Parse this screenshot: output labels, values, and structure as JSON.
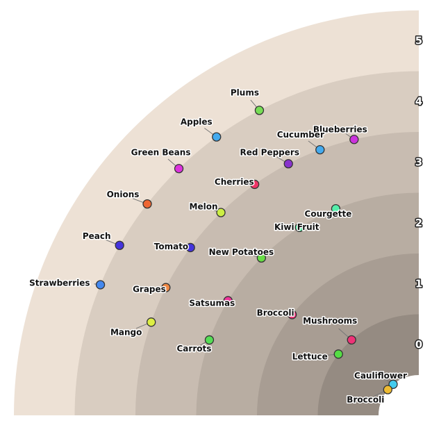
{
  "chart_data": {
    "type": "radial-scatter",
    "xlim": [
      0,
      90
    ],
    "ylim": [
      -0.5,
      5.5
    ],
    "yticks": [
      0,
      1,
      2,
      3,
      4,
      5
    ],
    "band_colors": [
      "#958b82",
      "#a89d93",
      "#b8ada2",
      "#c8bcb1",
      "#d9cdc1",
      "#ede1d5"
    ],
    "points": [
      {
        "name": "Plums",
        "x": 62.4,
        "y": 4.5,
        "color": "#77dd55"
      },
      {
        "name": "Apples",
        "x": 54.0,
        "y": 4.5,
        "color": "#44aaee"
      },
      {
        "name": "Green Beans",
        "x": 45.8,
        "y": 4.5,
        "color": "#dd33dd"
      },
      {
        "name": "Onions",
        "x": 37.9,
        "y": 4.5,
        "color": "#ee6633"
      },
      {
        "name": "Peach",
        "x": 29.6,
        "y": 4.5,
        "color": "#4433dd"
      },
      {
        "name": "Strawberries",
        "x": 22.3,
        "y": 4.5,
        "color": "#4488ee"
      },
      {
        "name": "Blueberries",
        "x": 76.8,
        "y": 3.5,
        "color": "#cc33dd"
      },
      {
        "name": "Cucumber",
        "x": 69.6,
        "y": 3.5,
        "color": "#44aaee"
      },
      {
        "name": "Red Peppers",
        "x": 62.6,
        "y": 3.5,
        "color": "#8833cc"
      },
      {
        "name": "Cherries",
        "x": 54.6,
        "y": 3.5,
        "color": "#ee3366"
      },
      {
        "name": "Melon",
        "x": 45.7,
        "y": 3.5,
        "color": "#ccee44"
      },
      {
        "name": "Tomato",
        "x": 36.3,
        "y": 3.5,
        "color": "#4433dd"
      },
      {
        "name": "Grapes",
        "x": 26.8,
        "y": 3.5,
        "color": "#ee8844"
      },
      {
        "name": "Mango",
        "x": 19.2,
        "y": 3.5,
        "color": "#ddee44"
      },
      {
        "name": "Courgette",
        "x": 68.1,
        "y": 2.5,
        "color": "#55eeaa"
      },
      {
        "name": "Kiwi Fruit",
        "x": 57.6,
        "y": 2.5,
        "color": "#44ee99"
      },
      {
        "name": "New Potatoes",
        "x": 45.0,
        "y": 2.5,
        "color": "#66dd44"
      },
      {
        "name": "Satsumas",
        "x": 31.0,
        "y": 2.5,
        "color": "#ee3399"
      },
      {
        "name": "Carrots",
        "x": 19.8,
        "y": 2.5,
        "color": "#55dd55"
      },
      {
        "name": "Broccoli",
        "x": 38.5,
        "y": 1.5,
        "color": "#ee3377"
      },
      {
        "name": "Mushrooms",
        "x": 48.3,
        "y": 0.5,
        "color": "#ee3377"
      },
      {
        "name": "Lettuce",
        "x": 37.3,
        "y": 0.5,
        "color": "#55dd44"
      },
      {
        "name": "Cauliflower",
        "x": 50.4,
        "y": -0.5,
        "color": "#44ccee"
      },
      {
        "name": "Broccoli",
        "x": 39.6,
        "y": -0.5,
        "color": "#eebb33"
      }
    ]
  }
}
